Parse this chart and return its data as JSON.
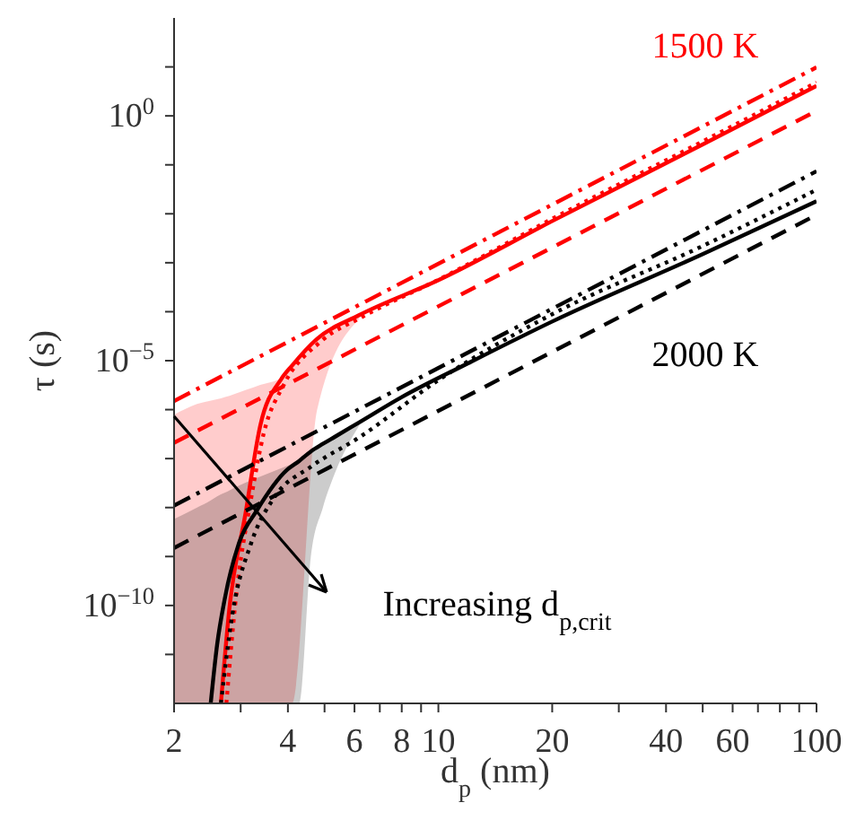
{
  "chart_data": {
    "type": "line",
    "xlabel": "d$_{p}$ (nm)",
    "ylabel": "τ (s)",
    "log": "xy",
    "grid": false,
    "legend": false,
    "xlim": [
      2,
      100
    ],
    "ylim": [
      1e-12,
      100
    ],
    "xticks": [
      2,
      {
        "value": 3,
        "label": null
      },
      4,
      {
        "value": 5,
        "label": null
      },
      6,
      {
        "value": 7,
        "label": null
      },
      8,
      {
        "value": 9,
        "label": null
      },
      10,
      20,
      {
        "value": 30,
        "label": null
      },
      40,
      {
        "value": 50,
        "label": null
      },
      60,
      {
        "value": 70,
        "label": null
      },
      {
        "value": 80,
        "label": null
      },
      {
        "value": 90,
        "label": null
      },
      100
    ],
    "yticks": [
      {
        "value": 1e-11,
        "label": null
      },
      {
        "value": 1e-10,
        "label": "10$^{−10}$"
      },
      {
        "value": 1e-09,
        "label": null
      },
      {
        "value": 1e-08,
        "label": null
      },
      {
        "value": 1e-07,
        "label": null
      },
      {
        "value": 1e-06,
        "label": null
      },
      {
        "value": 1e-05,
        "label": "10$^{−5}$"
      },
      {
        "value": 0.0001,
        "label": null
      },
      {
        "value": 0.001,
        "label": null
      },
      {
        "value": 0.01,
        "label": null
      },
      {
        "value": 0.1,
        "label": null
      },
      {
        "value": 1,
        "label": "10$^{0}$"
      },
      {
        "value": 10,
        "label": null
      }
    ],
    "series": [
      {
        "color": "#ff0000",
        "line_style": "solid",
        "x": [
          2,
          2.3,
          2.66,
          2.8,
          3.09,
          3.38,
          3.84,
          4.1,
          4.78,
          6.17,
          10,
          20,
          50,
          100
        ],
        "values": [
          null,
          null,
          1e-12,
          8.5e-11,
          7.6e-09,
          4.7e-07,
          4.2e-06,
          7.9e-06,
          2.8e-05,
          8.5e-05,
          0.00044,
          0.0071,
          0.26,
          4.1
        ],
        "lower": [
          1e-12,
          1e-12,
          1e-12,
          1e-12,
          1e-12,
          1e-12,
          1e-12,
          1e-12,
          1e-06,
          7.1e-05,
          null,
          null,
          null,
          null
        ],
        "upper": [
          7.9e-07,
          1.3e-06,
          1.7e-06,
          1.9e-06,
          2.5e-06,
          3.2e-06,
          4.5e-06,
          8.5e-06,
          2.8e-05,
          8.5e-05,
          null,
          null,
          null,
          null
        ]
      },
      {
        "color": "#ff0000",
        "line_style": "dotted",
        "x": [
          2.75,
          2.9,
          3.2,
          3.45,
          3.9,
          4.9,
          6.3,
          10,
          20,
          50,
          100
        ],
        "values": [
          1e-12,
          1e-10,
          1.6e-08,
          3.2e-07,
          3.2e-06,
          2.5e-05,
          7.9e-05,
          0.00045,
          0.0079,
          0.3,
          4.8
        ]
      },
      {
        "color": "#ff0000",
        "line_style": "dashed",
        "x": [
          2,
          100
        ],
        "values": [
          2.1e-07,
          1.26
        ]
      },
      {
        "color": "#ff0000",
        "line_style": "dashdot",
        "x": [
          2,
          100
        ],
        "values": [
          1.5e-06,
          9.8
        ]
      },
      {
        "color": "#000000",
        "line_style": "solid",
        "x": [
          2,
          2.3,
          2.5,
          2.6,
          2.72,
          2.97,
          3.31,
          3.98,
          4.28,
          4.6,
          4.95,
          5.33,
          6.2,
          8,
          12,
          20,
          50,
          100
        ],
        "values": [
          null,
          null,
          1e-12,
          1.6e-11,
          1.3e-10,
          1.9e-09,
          8.7e-09,
          5.9e-08,
          8.9e-08,
          1.4e-07,
          2e-07,
          2.8e-07,
          5.6e-07,
          1.8e-06,
          8.9e-06,
          6.3e-05,
          0.0015,
          0.018
        ],
        "lower": [
          1e-12,
          1e-12,
          1e-12,
          1e-12,
          1e-12,
          1e-12,
          1e-12,
          1e-12,
          1e-12,
          1e-09,
          1e-08,
          5.1e-08,
          5e-07,
          null,
          null,
          null,
          null,
          null
        ],
        "upper": [
          5.8e-09,
          1e-08,
          1.4e-08,
          1.7e-08,
          2e-08,
          2.8e-08,
          4e-08,
          7.1e-08,
          8.9e-08,
          1.4e-07,
          2e-07,
          2.8e-07,
          5.6e-07,
          null,
          null,
          null,
          null,
          null
        ]
      },
      {
        "color": "#000000",
        "line_style": "dotted",
        "x": [
          2.66,
          2.85,
          3.2,
          3.7,
          4.6,
          6.17,
          10,
          20,
          50,
          100
        ],
        "values": [
          1e-12,
          6.3e-11,
          1.9e-09,
          1.7e-08,
          6.8e-08,
          2.7e-07,
          4e-06,
          8.9e-05,
          0.0022,
          0.031
        ]
      },
      {
        "color": "#000000",
        "line_style": "dashed",
        "x": [
          2,
          100
        ],
        "values": [
          1.5e-09,
          0.0095
        ]
      },
      {
        "color": "#000000",
        "line_style": "dashdot",
        "x": [
          2,
          100
        ],
        "values": [
          1.1e-08,
          0.074
        ]
      }
    ],
    "annotations": [
      "1500 K",
      "2000 K",
      "Increasing d$_{p,crit}$"
    ]
  }
}
